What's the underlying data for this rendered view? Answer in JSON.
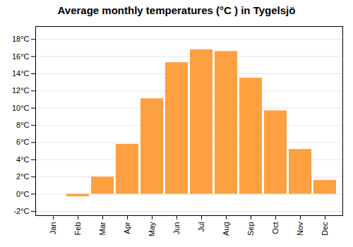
{
  "chart_data": {
    "type": "bar",
    "title": "Average monthly temperatures (°C ) in Tygelsjö",
    "categories": [
      "Jan",
      "Feb",
      "Mar",
      "Apr",
      "May",
      "Jun",
      "Jul",
      "Aug",
      "Sep",
      "Oct",
      "Nov",
      "Dec"
    ],
    "values": [
      0.0,
      -0.3,
      2.0,
      5.8,
      11.1,
      15.3,
      16.8,
      16.6,
      13.5,
      9.7,
      5.2,
      1.6
    ],
    "color": "#FFA040",
    "ylim": [
      -2.5,
      19.5
    ],
    "yticks": [
      {
        "value": -2,
        "label": "-2°C"
      },
      {
        "value": 0,
        "label": "0°C"
      },
      {
        "value": 2,
        "label": "2°C"
      },
      {
        "value": 4,
        "label": "4°C"
      },
      {
        "value": 6,
        "label": "6°C"
      },
      {
        "value": 8,
        "label": "8°C"
      },
      {
        "value": 10,
        "label": "10°C"
      },
      {
        "value": 12,
        "label": "12°C"
      },
      {
        "value": 14,
        "label": "14°C"
      },
      {
        "value": 16,
        "label": "16°C"
      },
      {
        "value": 18,
        "label": "18°C"
      }
    ],
    "grid": true
  }
}
